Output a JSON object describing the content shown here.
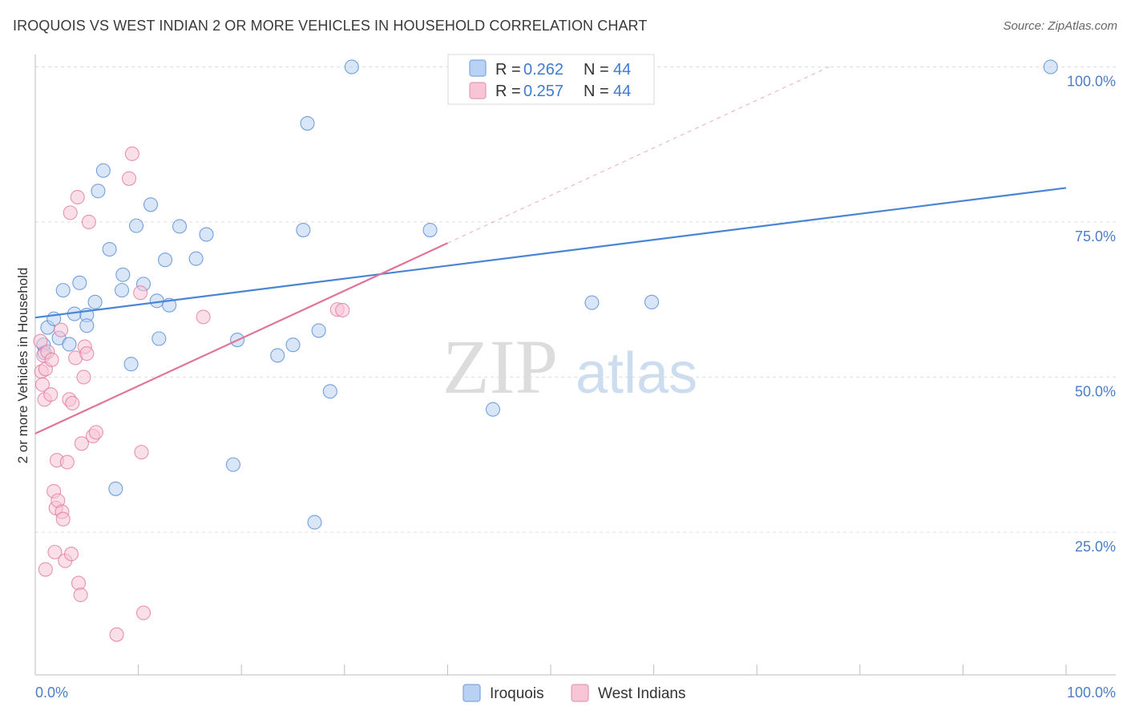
{
  "header": {
    "title": "IROQUOIS VS WEST INDIAN 2 OR MORE VEHICLES IN HOUSEHOLD CORRELATION CHART",
    "source": "Source: ZipAtlas.com"
  },
  "watermark": {
    "zip": "ZIP",
    "atlas": "atlas"
  },
  "legend": {
    "rows": [
      {
        "r_label": "R = ",
        "r_value": "0.262",
        "n_label": "N = ",
        "n_value": "44",
        "color": "#a9c8ef"
      },
      {
        "r_label": "R = ",
        "r_value": "0.257",
        "n_label": "N = ",
        "n_value": "44",
        "color": "#f6b8cb"
      }
    ]
  },
  "chart_data": {
    "type": "scatter",
    "title": "IROQUOIS VS WEST INDIAN 2 OR MORE VEHICLES IN HOUSEHOLD CORRELATION CHART",
    "xlabel": "",
    "ylabel": "2 or more Vehicles in Household",
    "xlim": [
      0,
      100
    ],
    "ylim": [
      2,
      102
    ],
    "x_tick_labels": [
      "0.0%",
      "100.0%"
    ],
    "y_ticks": [
      25,
      50,
      75,
      100
    ],
    "y_tick_labels": [
      "25.0%",
      "50.0%",
      "75.0%",
      "100.0%"
    ],
    "grid": true,
    "legend_position": "top-center",
    "series": [
      {
        "name": "Iroquois",
        "color": "#4a84d4",
        "fill": "#b9d1f2",
        "trend": {
          "x0": 0,
          "y0": 59.6,
          "x1": 100,
          "y1": 80.5,
          "style": "solid"
        },
        "points": [
          [
            0.8,
            55.2
          ],
          [
            1.2,
            58.0
          ],
          [
            1.8,
            59.4
          ],
          [
            2.3,
            56.3
          ],
          [
            2.7,
            64.0
          ],
          [
            3.3,
            55.3
          ],
          [
            3.8,
            60.2
          ],
          [
            4.3,
            65.2
          ],
          [
            5.0,
            60.0
          ],
          [
            5.0,
            58.3
          ],
          [
            5.8,
            62.1
          ],
          [
            6.1,
            80.0
          ],
          [
            6.6,
            83.3
          ],
          [
            7.2,
            70.6
          ],
          [
            7.8,
            32.0
          ],
          [
            8.4,
            64.0
          ],
          [
            8.5,
            66.5
          ],
          [
            9.3,
            52.1
          ],
          [
            9.8,
            74.4
          ],
          [
            10.5,
            65.0
          ],
          [
            11.2,
            77.8
          ],
          [
            11.8,
            62.3
          ],
          [
            12.0,
            56.2
          ],
          [
            12.6,
            68.9
          ],
          [
            13.0,
            61.6
          ],
          [
            14.0,
            74.3
          ],
          [
            15.6,
            69.1
          ],
          [
            16.6,
            73.0
          ],
          [
            19.2,
            35.9
          ],
          [
            19.6,
            56.0
          ],
          [
            23.5,
            53.5
          ],
          [
            25.0,
            55.2
          ],
          [
            26.0,
            73.7
          ],
          [
            26.4,
            90.9
          ],
          [
            27.1,
            26.6
          ],
          [
            27.5,
            57.5
          ],
          [
            28.6,
            47.7
          ],
          [
            30.7,
            100.0
          ],
          [
            38.3,
            73.7
          ],
          [
            44.4,
            44.8
          ],
          [
            54.0,
            62.0
          ],
          [
            59.8,
            62.1
          ],
          [
            98.5,
            100.0
          ],
          [
            0.9,
            53.9
          ]
        ]
      },
      {
        "name": "West Indians",
        "color": "#e07399",
        "fill": "#f7c5d5",
        "trend": {
          "x0": 0,
          "y0": 40.9,
          "x1": 40,
          "y1": 71.6,
          "style": "solid"
        },
        "trend_extension": {
          "x0": 40,
          "y0": 71.6,
          "x1": 77,
          "y1": 100.0,
          "style": "dashed"
        },
        "points": [
          [
            0.5,
            55.8
          ],
          [
            0.6,
            50.9
          ],
          [
            0.7,
            48.8
          ],
          [
            0.8,
            53.5
          ],
          [
            0.9,
            46.4
          ],
          [
            1.0,
            51.3
          ],
          [
            1.0,
            19.0
          ],
          [
            1.2,
            54.1
          ],
          [
            1.5,
            47.2
          ],
          [
            1.6,
            52.8
          ],
          [
            1.8,
            31.6
          ],
          [
            1.9,
            21.8
          ],
          [
            2.0,
            28.9
          ],
          [
            2.1,
            36.6
          ],
          [
            2.2,
            30.1
          ],
          [
            2.5,
            57.6
          ],
          [
            2.6,
            28.3
          ],
          [
            2.7,
            27.1
          ],
          [
            2.9,
            20.4
          ],
          [
            3.1,
            36.3
          ],
          [
            3.3,
            46.4
          ],
          [
            3.4,
            76.5
          ],
          [
            3.5,
            21.5
          ],
          [
            3.6,
            45.8
          ],
          [
            3.9,
            53.1
          ],
          [
            4.1,
            79.0
          ],
          [
            4.2,
            16.8
          ],
          [
            4.4,
            14.9
          ],
          [
            4.5,
            39.3
          ],
          [
            4.7,
            50.0
          ],
          [
            4.8,
            54.9
          ],
          [
            5.0,
            53.8
          ],
          [
            5.2,
            75.0
          ],
          [
            5.6,
            40.5
          ],
          [
            5.9,
            41.1
          ],
          [
            7.9,
            8.5
          ],
          [
            9.1,
            82.0
          ],
          [
            9.4,
            86.0
          ],
          [
            10.2,
            63.6
          ],
          [
            10.3,
            37.9
          ],
          [
            10.5,
            12.0
          ],
          [
            16.3,
            59.7
          ],
          [
            29.3,
            60.9
          ],
          [
            29.8,
            60.8
          ]
        ]
      }
    ]
  },
  "bottom_legend": {
    "items": [
      {
        "label": "Iroquois",
        "color": "#b9d1f2",
        "border": "#7ea6dd"
      },
      {
        "label": "West Indians",
        "color": "#f7c5d5",
        "border": "#e59ab4"
      }
    ]
  }
}
